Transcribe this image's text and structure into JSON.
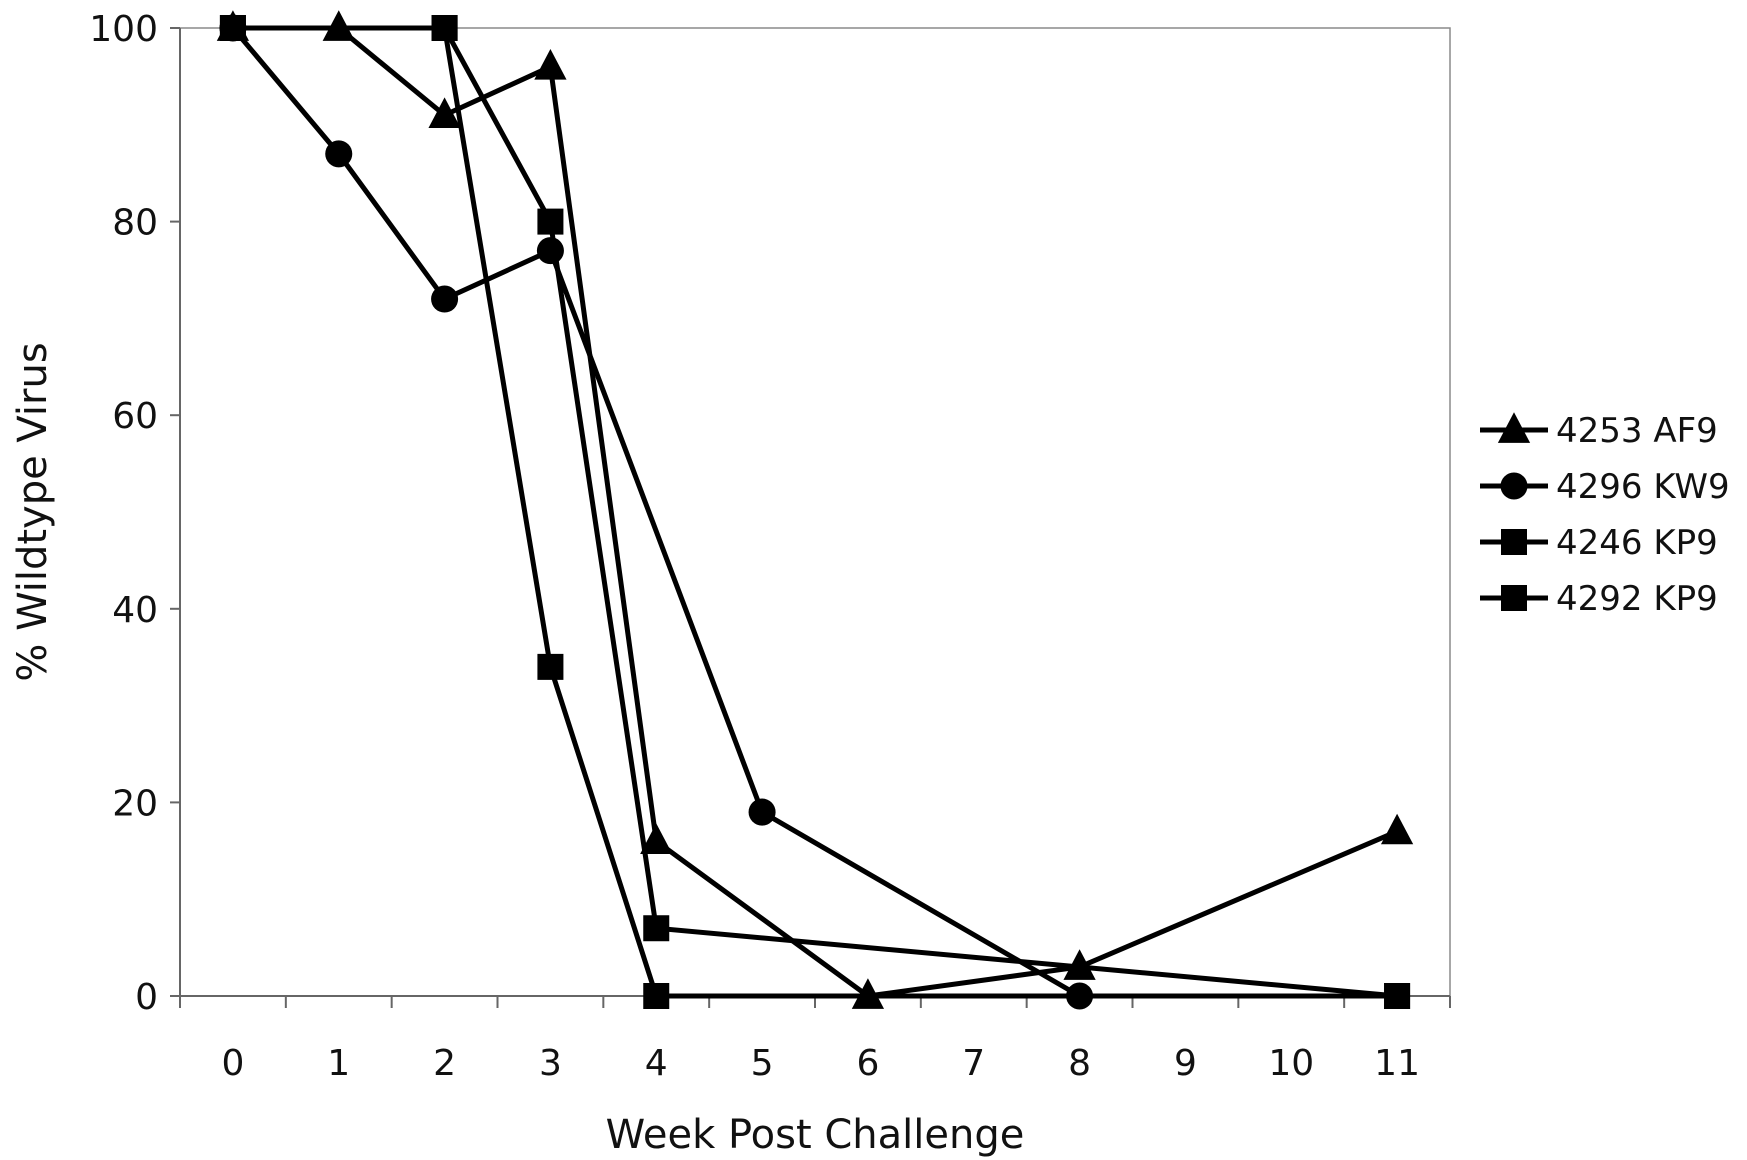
{
  "chart_data": {
    "type": "line",
    "xlabel": "Week Post Challenge",
    "ylabel": "% Wildtype Virus",
    "x_ticks": [
      "0",
      "1",
      "2",
      "3",
      "4",
      "5",
      "6",
      "7",
      "8",
      "9",
      "10",
      "11"
    ],
    "y_ticks": [
      "0",
      "20",
      "40",
      "60",
      "80",
      "100"
    ],
    "xlim": [
      -0.5,
      11.5
    ],
    "ylim": [
      0,
      100
    ],
    "grid": false,
    "legend_position": "right",
    "line_color": "#000000",
    "series": [
      {
        "name": "4253 AF9",
        "marker": "triangle",
        "points": [
          [
            0,
            100
          ],
          [
            1,
            100
          ],
          [
            2,
            91
          ],
          [
            3,
            96
          ],
          [
            4,
            16
          ],
          [
            6,
            0
          ],
          [
            8,
            3
          ],
          [
            11,
            17
          ]
        ]
      },
      {
        "name": "4296 KW9",
        "marker": "circle",
        "points": [
          [
            0,
            100
          ],
          [
            1,
            87
          ],
          [
            2,
            72
          ],
          [
            3,
            77
          ],
          [
            5,
            19
          ],
          [
            8,
            0
          ]
        ]
      },
      {
        "name": "4246 KP9",
        "marker": "square",
        "points": [
          [
            0,
            100
          ],
          [
            2,
            100
          ],
          [
            3,
            80
          ],
          [
            4,
            7
          ],
          [
            11,
            0
          ]
        ]
      },
      {
        "name": "4292 KP9",
        "marker": "square",
        "points": [
          [
            0,
            100
          ],
          [
            2,
            100
          ],
          [
            3,
            34
          ],
          [
            4,
            0
          ],
          [
            11,
            0
          ]
        ]
      }
    ]
  }
}
